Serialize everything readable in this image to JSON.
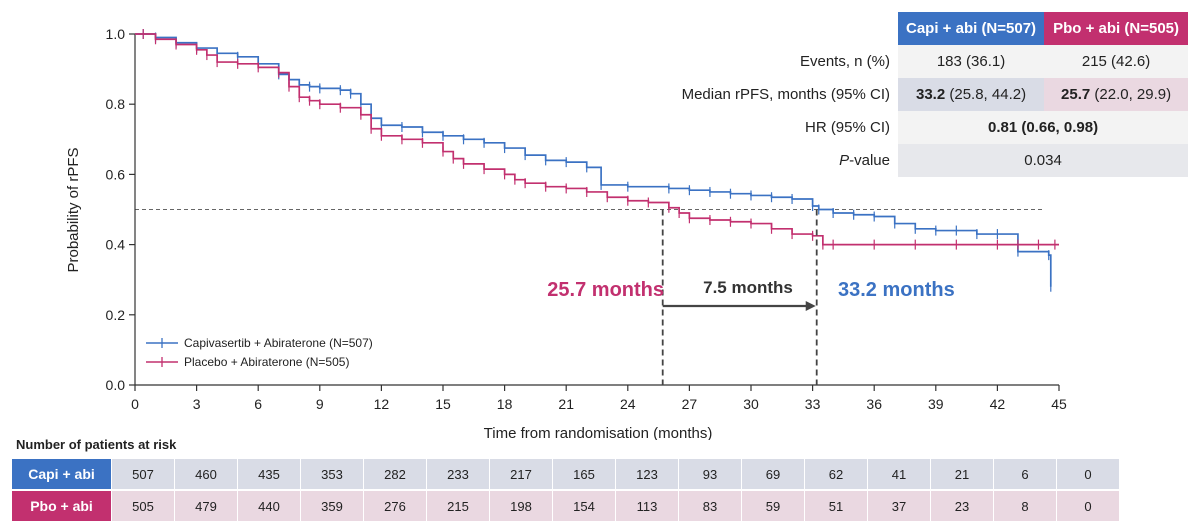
{
  "chart_data": {
    "type": "line",
    "subtype": "kaplan-meier",
    "xlabel": "Time from randomisation (months)",
    "ylabel": "Probability of rPFS",
    "xlim": [
      0,
      45
    ],
    "ylim": [
      0,
      1.0
    ],
    "xticks": [
      0,
      3,
      6,
      9,
      12,
      15,
      18,
      21,
      24,
      27,
      30,
      33,
      36,
      39,
      42,
      45
    ],
    "yticks": [
      "0.0",
      "0.2",
      "0.4",
      "0.6",
      "0.8",
      "1.0"
    ],
    "legend_position": "bottom-left",
    "reference_line_y": 0.5,
    "series": [
      {
        "name": "Capivasertib + Abiraterone (N=507)",
        "color": "#3b72c3",
        "x": [
          0.4,
          1,
          2,
          3,
          4,
          5,
          6,
          7,
          7.5,
          8,
          8.5,
          9,
          10,
          10.5,
          11,
          11.5,
          12,
          13,
          14,
          15,
          16,
          17,
          18,
          19,
          20,
          21,
          22,
          22.7,
          24,
          26,
          27,
          28,
          29,
          30,
          31,
          32,
          33,
          33.3,
          34,
          35,
          36,
          37,
          38,
          39,
          40,
          41,
          42,
          43,
          44.5,
          44.6
        ],
        "y": [
          1.0,
          0.99,
          0.975,
          0.96,
          0.945,
          0.935,
          0.915,
          0.885,
          0.87,
          0.855,
          0.85,
          0.845,
          0.84,
          0.83,
          0.8,
          0.76,
          0.74,
          0.735,
          0.72,
          0.71,
          0.7,
          0.69,
          0.675,
          0.655,
          0.64,
          0.635,
          0.62,
          0.57,
          0.565,
          0.56,
          0.555,
          0.55,
          0.545,
          0.54,
          0.535,
          0.53,
          0.51,
          0.5,
          0.49,
          0.485,
          0.48,
          0.46,
          0.445,
          0.44,
          0.44,
          0.43,
          0.43,
          0.38,
          0.37,
          0.28
        ]
      },
      {
        "name": "Placebo + Abiraterone (N=505)",
        "color": "#c2306f",
        "x": [
          0.4,
          1,
          2,
          3,
          3.5,
          4,
          5,
          6,
          7,
          7.5,
          8,
          8.5,
          9,
          10,
          11,
          11.5,
          12,
          13,
          14,
          15,
          15.5,
          16,
          17,
          18,
          18.5,
          19,
          20,
          21,
          22,
          23,
          24,
          25,
          26,
          26.5,
          27,
          28,
          29,
          30,
          31,
          32,
          33,
          33.5,
          34,
          36,
          38,
          40,
          42,
          43,
          44,
          44.8
        ],
        "y": [
          1.0,
          0.985,
          0.97,
          0.955,
          0.94,
          0.92,
          0.915,
          0.905,
          0.89,
          0.85,
          0.82,
          0.81,
          0.8,
          0.79,
          0.77,
          0.73,
          0.71,
          0.7,
          0.69,
          0.665,
          0.645,
          0.63,
          0.615,
          0.6,
          0.585,
          0.575,
          0.565,
          0.56,
          0.55,
          0.535,
          0.525,
          0.52,
          0.505,
          0.49,
          0.475,
          0.47,
          0.465,
          0.46,
          0.445,
          0.43,
          0.425,
          0.4,
          0.4,
          0.4,
          0.4,
          0.4,
          0.4,
          0.4,
          0.4,
          0.4
        ]
      }
    ],
    "annotations": {
      "left_median": "25.7 months",
      "right_median": "33.2 months",
      "difference": "7.5 months",
      "left_median_x": 25.7,
      "right_median_x": 33.2
    }
  },
  "summary_table": {
    "header": [
      "Capi + abi (N=507)",
      "Pbo + abi (N=505)"
    ],
    "rows": [
      {
        "label": "Events, n (%)",
        "c1": "183 (36.1)",
        "c2": "215 (42.6)"
      },
      {
        "label": "Median rPFS, months (95% CI)",
        "c1_bold": "33.2",
        "c1_rest": " (25.8, 44.2)",
        "c2_bold": "25.7",
        "c2_rest": " (22.0, 29.9)"
      },
      {
        "label": "HR (95% CI)",
        "value_bold": "0.81 (0.66, 0.98)"
      },
      {
        "label_italic": "P",
        "label_rest": "-value",
        "value": "0.034"
      }
    ]
  },
  "risk_table": {
    "title": "Number of patients at risk",
    "rows": [
      {
        "label": "Capi + abi",
        "values": [
          "507",
          "460",
          "435",
          "353",
          "282",
          "233",
          "217",
          "165",
          "123",
          "93",
          "69",
          "62",
          "41",
          "21",
          "6",
          "0"
        ]
      },
      {
        "label": "Pbo + abi",
        "values": [
          "505",
          "479",
          "440",
          "359",
          "276",
          "215",
          "198",
          "154",
          "113",
          "83",
          "59",
          "51",
          "37",
          "23",
          "8",
          "0"
        ]
      }
    ]
  },
  "colors": {
    "capi": "#3b72c3",
    "pbo": "#c2306f",
    "axis": "#333333"
  }
}
